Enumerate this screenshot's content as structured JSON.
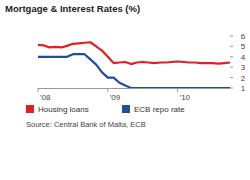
{
  "chart_data": {
    "type": "line",
    "title": "Mortgage & Interest Rates (%)",
    "source": "Source: Central Bank of Malta, ECB",
    "x": [
      2008,
      2008.083,
      2008.167,
      2008.25,
      2008.333,
      2008.417,
      2008.5,
      2008.583,
      2008.667,
      2008.75,
      2008.833,
      2008.917,
      2009,
      2009.083,
      2009.167,
      2009.25,
      2009.333,
      2009.417,
      2009.5,
      2009.583,
      2009.667,
      2009.75,
      2009.833,
      2009.917,
      2010,
      2010.083,
      2010.167,
      2010.25,
      2010.333,
      2010.417,
      2010.5,
      2010.583,
      2010.667,
      2010.75
    ],
    "series": [
      {
        "name": "Housing loans",
        "color": "#e31e24",
        "values": [
          5.15,
          5.1,
          4.9,
          4.95,
          4.9,
          5.05,
          5.25,
          5.3,
          5.35,
          5.4,
          5.0,
          4.6,
          4.0,
          3.4,
          3.45,
          3.5,
          3.3,
          3.45,
          3.5,
          3.45,
          3.4,
          3.45,
          3.45,
          3.5,
          3.55,
          3.5,
          3.45,
          3.45,
          3.4,
          3.4,
          3.4,
          3.35,
          3.4,
          3.45
        ]
      },
      {
        "name": "ECB repo rate",
        "color": "#1f4e9e",
        "values": [
          4.0,
          4.0,
          4.0,
          4.0,
          4.0,
          4.0,
          4.25,
          4.25,
          4.25,
          3.75,
          3.25,
          2.5,
          2.0,
          2.0,
          1.5,
          1.25,
          1.0,
          1.0,
          1.0,
          1.0,
          1.0,
          1.0,
          1.0,
          1.0,
          1.0,
          1.0,
          1.0,
          1.0,
          1.0,
          1.0,
          1.0,
          1.0,
          1.0,
          1.0
        ]
      }
    ],
    "xlim": [
      2008,
      2010.75
    ],
    "xticks": [
      {
        "value": 2008,
        "label": "'08"
      },
      {
        "value": 2009,
        "label": "'09"
      },
      {
        "value": 2010,
        "label": "'10"
      }
    ],
    "ylim": [
      1,
      6
    ],
    "yticks": [
      1,
      2,
      3,
      4,
      5,
      6
    ],
    "grid": false,
    "legend": "bottom"
  }
}
